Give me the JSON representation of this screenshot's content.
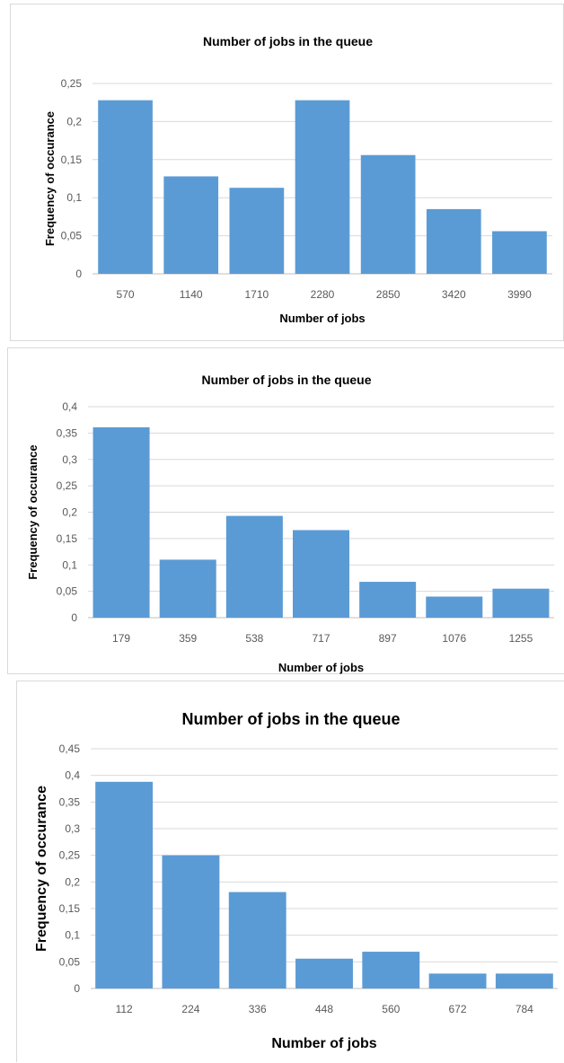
{
  "chart_data": [
    {
      "type": "bar",
      "title": "Number of jobs in the queue",
      "xlabel": "Number of jobs",
      "ylabel": "Frequency of occurance",
      "categories": [
        "570",
        "1140",
        "1710",
        "2280",
        "2850",
        "3420",
        "3990"
      ],
      "values": [
        0.228,
        0.128,
        0.113,
        0.228,
        0.156,
        0.085,
        0.056
      ],
      "ylim": [
        0,
        0.25
      ],
      "yticks": [
        "0",
        "0,05",
        "0,1",
        "0,15",
        "0,2",
        "0,25"
      ],
      "grid": true,
      "legend": "none",
      "bar_color": "#5b9bd5"
    },
    {
      "type": "bar",
      "title": "Number of jobs in the queue",
      "xlabel": "Number of jobs",
      "ylabel": "Frequency of occurance",
      "categories": [
        "179",
        "359",
        "538",
        "717",
        "897",
        "1076",
        "1255"
      ],
      "values": [
        0.361,
        0.11,
        0.193,
        0.166,
        0.068,
        0.04,
        0.055
      ],
      "ylim": [
        0,
        0.4
      ],
      "yticks": [
        "0",
        "0,05",
        "0,1",
        "0,15",
        "0,2",
        "0,25",
        "0,3",
        "0,35",
        "0,4"
      ],
      "grid": true,
      "legend": "none",
      "bar_color": "#5b9bd5"
    },
    {
      "type": "bar",
      "title": "Number of jobs in the queue",
      "xlabel": "Number of jobs",
      "ylabel": "Frequency of occurance",
      "categories": [
        "112",
        "224",
        "336",
        "448",
        "560",
        "672",
        "784"
      ],
      "values": [
        0.388,
        0.25,
        0.181,
        0.056,
        0.069,
        0.028,
        0.028
      ],
      "ylim": [
        0,
        0.45
      ],
      "yticks": [
        "0",
        "0,05",
        "0,1",
        "0,15",
        "0,2",
        "0,25",
        "0,3",
        "0,35",
        "0,4",
        "0,45"
      ],
      "grid": true,
      "legend": "none",
      "bar_color": "#5b9bd5"
    }
  ]
}
